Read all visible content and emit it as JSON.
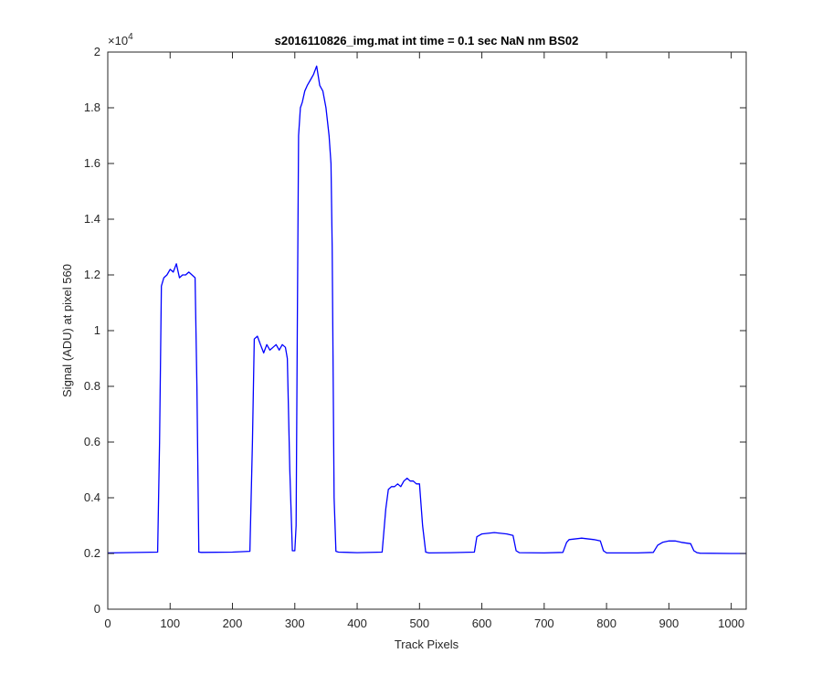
{
  "chart_data": {
    "type": "line",
    "title": "s2016110826_img.mat int time = 0.1 sec  NaN nm BS02",
    "xlabel": "Track Pixels",
    "ylabel": "Signal (ADU) at pixel 560",
    "y_exponent_base": "×10",
    "y_exponent_power": "4",
    "xlim": [
      0,
      1024
    ],
    "ylim": [
      0,
      2
    ],
    "x_ticks": [
      0,
      100,
      200,
      300,
      400,
      500,
      600,
      700,
      800,
      900,
      1000
    ],
    "x_tick_labels": [
      "0",
      "100",
      "200",
      "300",
      "400",
      "500",
      "600",
      "700",
      "800",
      "900",
      "1000"
    ],
    "y_ticks": [
      0,
      0.2,
      0.4,
      0.6,
      0.8,
      1,
      1.2,
      1.4,
      1.6,
      1.8,
      2
    ],
    "y_tick_labels": [
      "0",
      "0.2",
      "0.4",
      "0.6",
      "0.8",
      "1",
      "1.2",
      "1.4",
      "1.6",
      "1.8",
      "2"
    ],
    "grid": false,
    "series": [
      {
        "color": "#0000ff",
        "x": [
          0,
          80,
          83,
          86,
          90,
          95,
          100,
          105,
          110,
          115,
          120,
          125,
          130,
          135,
          140,
          143,
          146,
          150,
          200,
          228,
          232,
          235,
          240,
          245,
          250,
          255,
          260,
          265,
          270,
          275,
          280,
          285,
          288,
          292,
          296,
          300,
          302,
          304,
          306,
          309,
          312,
          316,
          320,
          325,
          330,
          335,
          340,
          345,
          350,
          355,
          358,
          360,
          363,
          366,
          370,
          400,
          440,
          446,
          450,
          455,
          460,
          465,
          470,
          475,
          480,
          485,
          490,
          495,
          500,
          505,
          510,
          515,
          550,
          588,
          592,
          600,
          620,
          640,
          650,
          655,
          660,
          700,
          730,
          736,
          740,
          760,
          780,
          790,
          795,
          800,
          850,
          875,
          882,
          890,
          900,
          910,
          920,
          935,
          940,
          945,
          950,
          1000,
          1024
        ],
        "y": [
          0.202,
          0.205,
          0.6,
          1.16,
          1.19,
          1.2,
          1.22,
          1.21,
          1.24,
          1.19,
          1.2,
          1.2,
          1.21,
          1.2,
          1.19,
          0.8,
          0.205,
          0.204,
          0.205,
          0.208,
          0.6,
          0.97,
          0.98,
          0.95,
          0.92,
          0.95,
          0.93,
          0.94,
          0.95,
          0.93,
          0.95,
          0.94,
          0.9,
          0.5,
          0.21,
          0.21,
          0.3,
          1.0,
          1.7,
          1.8,
          1.82,
          1.86,
          1.88,
          1.9,
          1.92,
          1.95,
          1.88,
          1.86,
          1.8,
          1.7,
          1.6,
          1.3,
          0.4,
          0.208,
          0.205,
          0.203,
          0.205,
          0.36,
          0.43,
          0.44,
          0.44,
          0.45,
          0.44,
          0.46,
          0.47,
          0.46,
          0.46,
          0.45,
          0.45,
          0.3,
          0.205,
          0.202,
          0.203,
          0.205,
          0.26,
          0.27,
          0.275,
          0.27,
          0.265,
          0.21,
          0.203,
          0.202,
          0.204,
          0.24,
          0.25,
          0.255,
          0.25,
          0.245,
          0.21,
          0.202,
          0.202,
          0.204,
          0.23,
          0.24,
          0.245,
          0.245,
          0.24,
          0.235,
          0.21,
          0.203,
          0.201,
          0.2,
          0.2
        ]
      }
    ]
  }
}
